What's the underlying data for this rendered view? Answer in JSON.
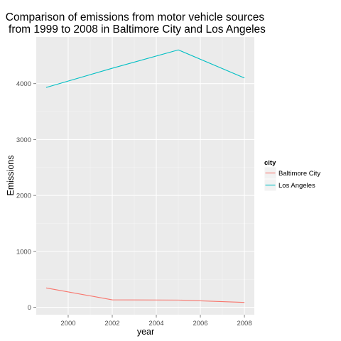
{
  "chart_data": {
    "type": "line",
    "title_lines": [
      "Comparison of emissions from motor vehicle sources",
      "from 1999 to 2008 in Baltimore City and Los Angeles"
    ],
    "xlabel": "year",
    "ylabel": "Emissions",
    "x": [
      1999,
      2002,
      2005,
      2008
    ],
    "xlim": [
      1998.55,
      2008.45
    ],
    "ylim": [
      -132,
      4834
    ],
    "x_ticks": [
      2000,
      2002,
      2004,
      2006,
      2008
    ],
    "y_ticks": [
      0,
      1000,
      2000,
      3000,
      4000
    ],
    "grid": true,
    "legend": {
      "title": "city",
      "position": "right"
    },
    "series": [
      {
        "name": "Baltimore City",
        "color": "#F8766D",
        "values": [
          347,
          134,
          130,
          88
        ]
      },
      {
        "name": "Los Angeles",
        "color": "#00BFC4",
        "values": [
          3931,
          4274,
          4602,
          4101
        ]
      }
    ]
  },
  "colors": {
    "panel_background": "#EBEBEB",
    "grid_major": "#FFFFFF",
    "grid_minor": "#F5F5F5",
    "tick_text": "#4D4D4D",
    "legend_key_background": "#F2F2F2"
  }
}
